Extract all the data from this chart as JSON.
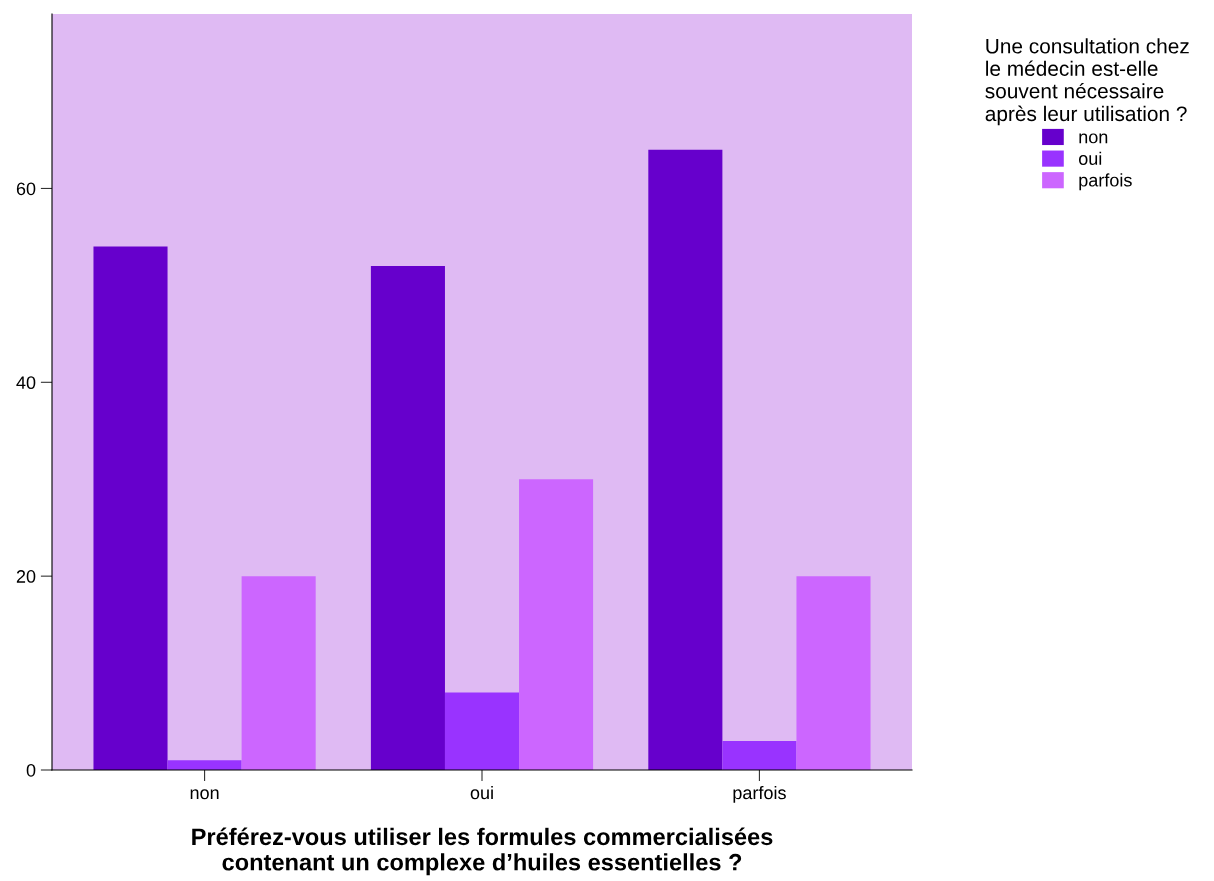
{
  "chart_data": {
    "type": "bar",
    "xlabel": "Préférez-vous utiliser les formules commercialisées\ncontenant un complexe d’huiles essentielles ?",
    "legend_title": "Une consultation chez\nle médecin est-elle\nsouvent nécessaire\naprès leur utilisation ?",
    "categories": [
      "non",
      "oui",
      "parfois"
    ],
    "series": [
      {
        "name": "non",
        "color": "#6600cc",
        "values": [
          54,
          52,
          64
        ]
      },
      {
        "name": "oui",
        "color": "#9933ff",
        "values": [
          1,
          8,
          3
        ]
      },
      {
        "name": "parfois",
        "color": "#cc66ff",
        "values": [
          20,
          30,
          20
        ]
      }
    ],
    "ylim": [
      0,
      78
    ],
    "yticks": [
      0,
      20,
      40,
      60
    ],
    "grid": false,
    "legend": "top right"
  }
}
